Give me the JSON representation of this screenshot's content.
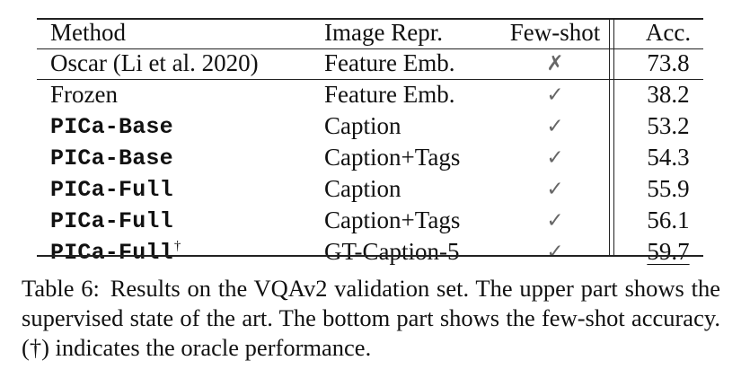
{
  "table": {
    "headers": {
      "method": "Method",
      "image_repr": "Image Repr.",
      "few_shot": "Few-shot",
      "acc": "Acc."
    },
    "rows": [
      {
        "method": "Oscar (Li et al. 2020)",
        "method_style": "serif",
        "image_repr": "Feature Emb.",
        "few_shot": "✗",
        "acc": "73.8",
        "emphasis": ""
      },
      {
        "method": "Frozen",
        "method_style": "serif",
        "image_repr": "Feature Emb.",
        "few_shot": "✓",
        "acc": "38.2",
        "emphasis": ""
      },
      {
        "method": "PICa-Base",
        "method_style": "mono",
        "image_repr": "Caption",
        "few_shot": "✓",
        "acc": "53.2",
        "emphasis": ""
      },
      {
        "method": "PICa-Base",
        "method_style": "mono",
        "image_repr": "Caption+Tags",
        "few_shot": "✓",
        "acc": "54.3",
        "emphasis": ""
      },
      {
        "method": "PICa-Full",
        "method_style": "mono",
        "image_repr": "Caption",
        "few_shot": "✓",
        "acc": "55.9",
        "emphasis": ""
      },
      {
        "method": "PICa-Full",
        "method_style": "mono",
        "image_repr": "Caption+Tags",
        "few_shot": "✓",
        "acc": "56.1",
        "emphasis": "bold"
      },
      {
        "method": "PICa-Full",
        "method_style": "mono",
        "method_suffix": "†",
        "image_repr": "GT-Caption-5",
        "few_shot": "✓",
        "acc": "59.7",
        "emphasis": "underline"
      }
    ]
  },
  "caption": {
    "label": "Table 6:",
    "text": "Results on the VQAv2 validation set. The upper part shows the supervised state of the art. The bottom part shows the few-shot accuracy. (†) indicates the oracle performance."
  },
  "colors": {
    "text": "#111111",
    "mark": "#666666",
    "rule": "#222222",
    "background": "#ffffff"
  }
}
